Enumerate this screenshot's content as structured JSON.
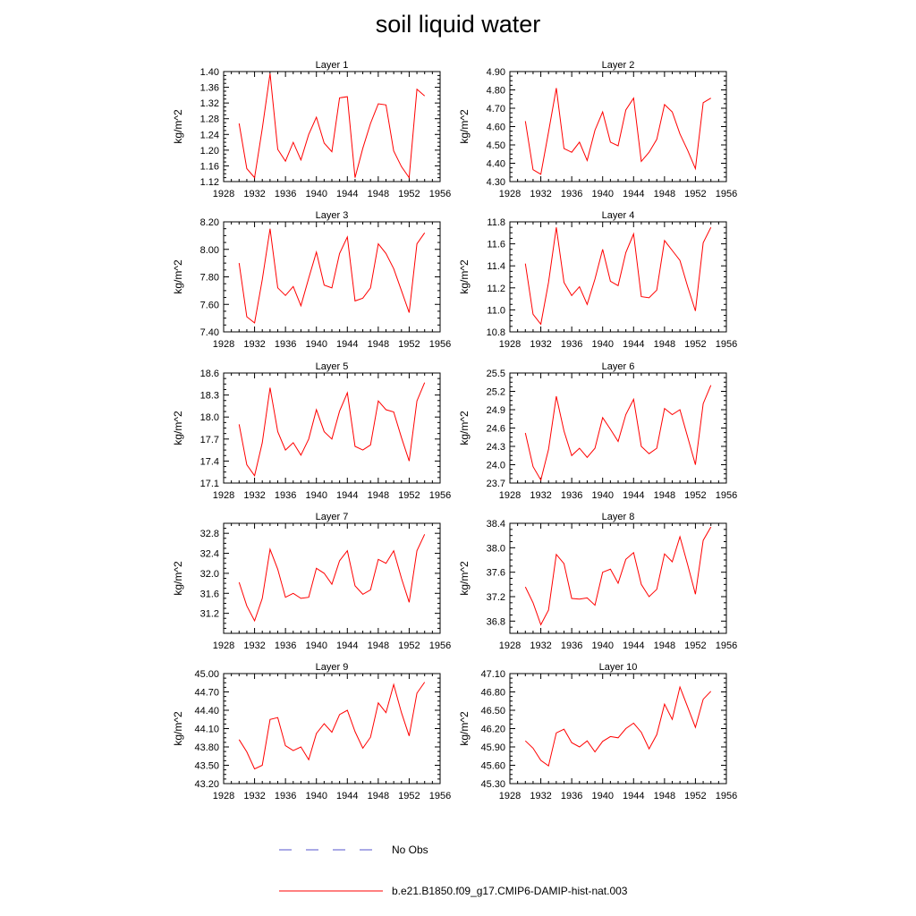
{
  "title": "soil liquid water",
  "colors": {
    "model": "#ff0000",
    "obs": "#5555cc",
    "axis": "#000000"
  },
  "legend": [
    {
      "label": "No Obs",
      "style": "dashed",
      "color": "#5555cc"
    },
    {
      "label": "b.e21.B1850.f09_g17.CMIP6-DAMIP-hist-nat.003",
      "style": "solid",
      "color": "#ff0000"
    }
  ],
  "chart_data": [
    {
      "type": "line",
      "title": "Layer 1",
      "ylabel": "kg/m^2",
      "xlim": [
        1928,
        1956
      ],
      "xticks": [
        "1928",
        "1932",
        "1936",
        "1940",
        "1944",
        "1948",
        "1952",
        "1956"
      ],
      "ylim": [
        1.12,
        1.4
      ],
      "yticks": [
        "1.12",
        "1.16",
        "1.20",
        "1.24",
        "1.28",
        "1.32",
        "1.36",
        "1.40"
      ],
      "x": [
        1930,
        1931,
        1932,
        1933,
        1934,
        1935,
        1936,
        1937,
        1938,
        1939,
        1940,
        1941,
        1942,
        1943,
        1944,
        1945,
        1946,
        1947,
        1948,
        1949,
        1950,
        1951,
        1952,
        1953,
        1954
      ],
      "series": [
        {
          "name": "b.e21.B1850.f09_g17.CMIP6-DAMIP-hist-nat.003",
          "values": [
            1.268,
            1.153,
            1.13,
            1.255,
            1.395,
            1.202,
            1.172,
            1.22,
            1.175,
            1.24,
            1.284,
            1.218,
            1.196,
            1.333,
            1.336,
            1.13,
            1.205,
            1.268,
            1.318,
            1.315,
            1.198,
            1.158,
            1.13,
            1.355,
            1.338
          ]
        }
      ]
    },
    {
      "type": "line",
      "title": "Layer 2",
      "ylabel": "kg/m^2",
      "xlim": [
        1928,
        1956
      ],
      "xticks": [
        "1928",
        "1932",
        "1936",
        "1940",
        "1944",
        "1948",
        "1952",
        "1956"
      ],
      "ylim": [
        4.3,
        4.9
      ],
      "yticks": [
        "4.30",
        "4.40",
        "4.50",
        "4.60",
        "4.70",
        "4.80",
        "4.90"
      ],
      "x": [
        1930,
        1931,
        1932,
        1933,
        1934,
        1935,
        1936,
        1937,
        1938,
        1939,
        1940,
        1941,
        1942,
        1943,
        1944,
        1945,
        1946,
        1947,
        1948,
        1949,
        1950,
        1951,
        1952,
        1953,
        1954
      ],
      "series": [
        {
          "name": "b.e21.B1850.f09_g17.CMIP6-DAMIP-hist-nat.003",
          "values": [
            4.63,
            4.365,
            4.34,
            4.57,
            4.81,
            4.48,
            4.46,
            4.515,
            4.415,
            4.58,
            4.68,
            4.515,
            4.495,
            4.69,
            4.755,
            4.41,
            4.46,
            4.53,
            4.72,
            4.68,
            4.56,
            4.47,
            4.37,
            4.73,
            4.755
          ]
        }
      ]
    },
    {
      "type": "line",
      "title": "Layer 3",
      "ylabel": "kg/m^2",
      "xlim": [
        1928,
        1956
      ],
      "xticks": [
        "1928",
        "1932",
        "1936",
        "1940",
        "1944",
        "1948",
        "1952",
        "1956"
      ],
      "ylim": [
        7.4,
        8.2
      ],
      "yticks": [
        "7.40",
        "7.60",
        "7.80",
        "8.00",
        "8.20"
      ],
      "x": [
        1930,
        1931,
        1932,
        1933,
        1934,
        1935,
        1936,
        1937,
        1938,
        1939,
        1940,
        1941,
        1942,
        1943,
        1944,
        1945,
        1946,
        1947,
        1948,
        1949,
        1950,
        1951,
        1952,
        1953,
        1954
      ],
      "series": [
        {
          "name": "b.e21.B1850.f09_g17.CMIP6-DAMIP-hist-nat.003",
          "values": [
            7.9,
            7.51,
            7.465,
            7.78,
            8.15,
            7.72,
            7.665,
            7.73,
            7.59,
            7.79,
            7.98,
            7.74,
            7.72,
            7.97,
            8.09,
            7.625,
            7.645,
            7.72,
            8.04,
            7.97,
            7.86,
            7.7,
            7.54,
            8.04,
            8.12
          ]
        }
      ]
    },
    {
      "type": "line",
      "title": "Layer 4",
      "ylabel": "kg/m^2",
      "xlim": [
        1928,
        1956
      ],
      "xticks": [
        "1928",
        "1932",
        "1936",
        "1940",
        "1944",
        "1948",
        "1952",
        "1956"
      ],
      "ylim": [
        10.8,
        11.8
      ],
      "yticks": [
        "10.8",
        "11.0",
        "11.2",
        "11.4",
        "11.6",
        "11.8"
      ],
      "x": [
        1930,
        1931,
        1932,
        1933,
        1934,
        1935,
        1936,
        1937,
        1938,
        1939,
        1940,
        1941,
        1942,
        1943,
        1944,
        1945,
        1946,
        1947,
        1948,
        1949,
        1950,
        1951,
        1952,
        1953,
        1954
      ],
      "series": [
        {
          "name": "b.e21.B1850.f09_g17.CMIP6-DAMIP-hist-nat.003",
          "values": [
            11.42,
            10.96,
            10.87,
            11.25,
            11.75,
            11.25,
            11.13,
            11.21,
            11.05,
            11.28,
            11.55,
            11.26,
            11.22,
            11.52,
            11.69,
            11.12,
            11.11,
            11.18,
            11.63,
            11.54,
            11.45,
            11.21,
            10.99,
            11.61,
            11.75
          ]
        }
      ]
    },
    {
      "type": "line",
      "title": "Layer 5",
      "ylabel": "kg/m^2",
      "xlim": [
        1928,
        1956
      ],
      "xticks": [
        "1928",
        "1932",
        "1936",
        "1940",
        "1944",
        "1948",
        "1952",
        "1956"
      ],
      "ylim": [
        17.1,
        18.6
      ],
      "yticks": [
        "17.1",
        "17.4",
        "17.7",
        "18.0",
        "18.3",
        "18.6"
      ],
      "x": [
        1930,
        1931,
        1932,
        1933,
        1934,
        1935,
        1936,
        1937,
        1938,
        1939,
        1940,
        1941,
        1942,
        1943,
        1944,
        1945,
        1946,
        1947,
        1948,
        1949,
        1950,
        1951,
        1952,
        1953,
        1954
      ],
      "series": [
        {
          "name": "b.e21.B1850.f09_g17.CMIP6-DAMIP-hist-nat.003",
          "values": [
            17.9,
            17.35,
            17.2,
            17.65,
            18.4,
            17.8,
            17.55,
            17.65,
            17.48,
            17.7,
            18.1,
            17.8,
            17.7,
            18.08,
            18.33,
            17.6,
            17.55,
            17.62,
            18.22,
            18.1,
            18.07,
            17.72,
            17.4,
            18.22,
            18.47
          ]
        }
      ]
    },
    {
      "type": "line",
      "title": "Layer 6",
      "ylabel": "kg/m^2",
      "xlim": [
        1928,
        1956
      ],
      "xticks": [
        "1928",
        "1932",
        "1936",
        "1940",
        "1944",
        "1948",
        "1952",
        "1956"
      ],
      "ylim": [
        23.7,
        25.5
      ],
      "yticks": [
        "23.7",
        "24.0",
        "24.3",
        "24.6",
        "24.9",
        "25.2",
        "25.5"
      ],
      "x": [
        1930,
        1931,
        1932,
        1933,
        1934,
        1935,
        1936,
        1937,
        1938,
        1939,
        1940,
        1941,
        1942,
        1943,
        1944,
        1945,
        1946,
        1947,
        1948,
        1949,
        1950,
        1951,
        1952,
        1953,
        1954
      ],
      "series": [
        {
          "name": "b.e21.B1850.f09_g17.CMIP6-DAMIP-hist-nat.003",
          "values": [
            24.52,
            23.97,
            23.75,
            24.25,
            25.12,
            24.55,
            24.15,
            24.27,
            24.12,
            24.27,
            24.77,
            24.58,
            24.38,
            24.82,
            25.07,
            24.3,
            24.18,
            24.27,
            24.92,
            24.82,
            24.9,
            24.45,
            24.0,
            25.0,
            25.3
          ]
        }
      ]
    },
    {
      "type": "line",
      "title": "Layer 7",
      "ylabel": "kg/m^2",
      "xlim": [
        1928,
        1956
      ],
      "xticks": [
        "1928",
        "1932",
        "1936",
        "1940",
        "1944",
        "1948",
        "1952",
        "1956"
      ],
      "ylim": [
        30.8,
        33.0
      ],
      "yticks": [
        "31.2",
        "31.6",
        "32.0",
        "32.4",
        "32.8"
      ],
      "x": [
        1930,
        1931,
        1932,
        1933,
        1934,
        1935,
        1936,
        1937,
        1938,
        1939,
        1940,
        1941,
        1942,
        1943,
        1944,
        1945,
        1946,
        1947,
        1948,
        1949,
        1950,
        1951,
        1952,
        1953,
        1954
      ],
      "series": [
        {
          "name": "b.e21.B1850.f09_g17.CMIP6-DAMIP-hist-nat.003",
          "values": [
            31.82,
            31.35,
            31.05,
            31.5,
            32.48,
            32.08,
            31.52,
            31.6,
            31.5,
            31.52,
            32.1,
            32.0,
            31.78,
            32.25,
            32.45,
            31.75,
            31.58,
            31.67,
            32.28,
            32.2,
            32.45,
            31.9,
            31.42,
            32.45,
            32.78
          ]
        }
      ]
    },
    {
      "type": "line",
      "title": "Layer 8",
      "ylabel": "kg/m^2",
      "xlim": [
        1928,
        1956
      ],
      "xticks": [
        "1928",
        "1932",
        "1936",
        "1940",
        "1944",
        "1948",
        "1952",
        "1956"
      ],
      "ylim": [
        36.6,
        38.4
      ],
      "yticks": [
        "36.8",
        "37.2",
        "37.6",
        "38.0",
        "38.4"
      ],
      "x": [
        1930,
        1931,
        1932,
        1933,
        1934,
        1935,
        1936,
        1937,
        1938,
        1939,
        1940,
        1941,
        1942,
        1943,
        1944,
        1945,
        1946,
        1947,
        1948,
        1949,
        1950,
        1951,
        1952,
        1953,
        1954
      ],
      "series": [
        {
          "name": "b.e21.B1850.f09_g17.CMIP6-DAMIP-hist-nat.003",
          "values": [
            37.36,
            37.1,
            36.74,
            36.98,
            37.89,
            37.74,
            37.17,
            37.16,
            37.18,
            37.06,
            37.6,
            37.65,
            37.42,
            37.81,
            37.92,
            37.4,
            37.2,
            37.32,
            37.9,
            37.77,
            38.18,
            37.72,
            37.24,
            38.12,
            38.34
          ]
        }
      ]
    },
    {
      "type": "line",
      "title": "Layer 9",
      "ylabel": "kg/m^2",
      "xlim": [
        1928,
        1956
      ],
      "xticks": [
        "1928",
        "1932",
        "1936",
        "1940",
        "1944",
        "1948",
        "1952",
        "1956"
      ],
      "ylim": [
        43.2,
        45.0
      ],
      "yticks": [
        "43.20",
        "43.50",
        "43.80",
        "44.10",
        "44.40",
        "44.70",
        "45.00"
      ],
      "x": [
        1930,
        1931,
        1932,
        1933,
        1934,
        1935,
        1936,
        1937,
        1938,
        1939,
        1940,
        1941,
        1942,
        1943,
        1944,
        1945,
        1946,
        1947,
        1948,
        1949,
        1950,
        1951,
        1952,
        1953,
        1954
      ],
      "series": [
        {
          "name": "b.e21.B1850.f09_g17.CMIP6-DAMIP-hist-nat.003",
          "values": [
            43.92,
            43.72,
            43.44,
            43.5,
            44.25,
            44.28,
            43.82,
            43.74,
            43.8,
            43.59,
            44.02,
            44.18,
            44.04,
            44.33,
            44.4,
            44.05,
            43.78,
            43.96,
            44.52,
            44.36,
            44.82,
            44.36,
            43.98,
            44.68,
            44.86
          ]
        }
      ]
    },
    {
      "type": "line",
      "title": "Layer 10",
      "ylabel": "kg/m^2",
      "xlim": [
        1928,
        1956
      ],
      "xticks": [
        "1928",
        "1932",
        "1936",
        "1940",
        "1944",
        "1948",
        "1952",
        "1956"
      ],
      "ylim": [
        45.3,
        47.1
      ],
      "yticks": [
        "45.30",
        "45.60",
        "45.90",
        "46.20",
        "46.50",
        "46.80",
        "47.10"
      ],
      "x": [
        1930,
        1931,
        1932,
        1933,
        1934,
        1935,
        1936,
        1937,
        1938,
        1939,
        1940,
        1941,
        1942,
        1943,
        1944,
        1945,
        1946,
        1947,
        1948,
        1949,
        1950,
        1951,
        1952,
        1953,
        1954
      ],
      "series": [
        {
          "name": "b.e21.B1850.f09_g17.CMIP6-DAMIP-hist-nat.003",
          "values": [
            46.0,
            45.88,
            45.68,
            45.59,
            46.13,
            46.19,
            45.97,
            45.9,
            46.0,
            45.82,
            45.99,
            46.07,
            46.05,
            46.2,
            46.29,
            46.14,
            45.87,
            46.1,
            46.6,
            46.35,
            46.88,
            46.55,
            46.22,
            46.68,
            46.81
          ]
        }
      ]
    }
  ]
}
